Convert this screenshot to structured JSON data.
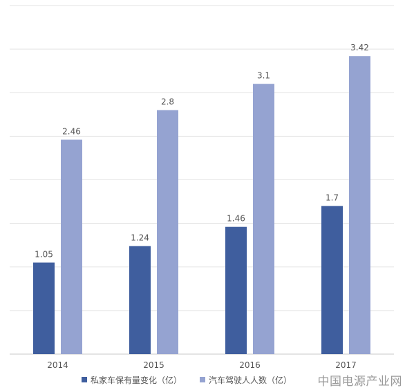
{
  "chart_data": {
    "type": "bar",
    "title": "",
    "xlabel": "",
    "ylabel": "",
    "categories": [
      "2014",
      "2015",
      "2016",
      "2017"
    ],
    "series": [
      {
        "name": "私家车保有量变化（亿）",
        "values": [
          1.05,
          1.24,
          1.46,
          1.7
        ],
        "color": "#3f5e9e"
      },
      {
        "name": "汽车驾驶人人数（亿）",
        "values": [
          2.46,
          2.8,
          3.1,
          3.42
        ],
        "color": "#95a3d1"
      }
    ],
    "ylim": [
      0,
      4
    ],
    "grid": true,
    "legend_position": "bottom"
  },
  "watermark": "中国电源产业网"
}
